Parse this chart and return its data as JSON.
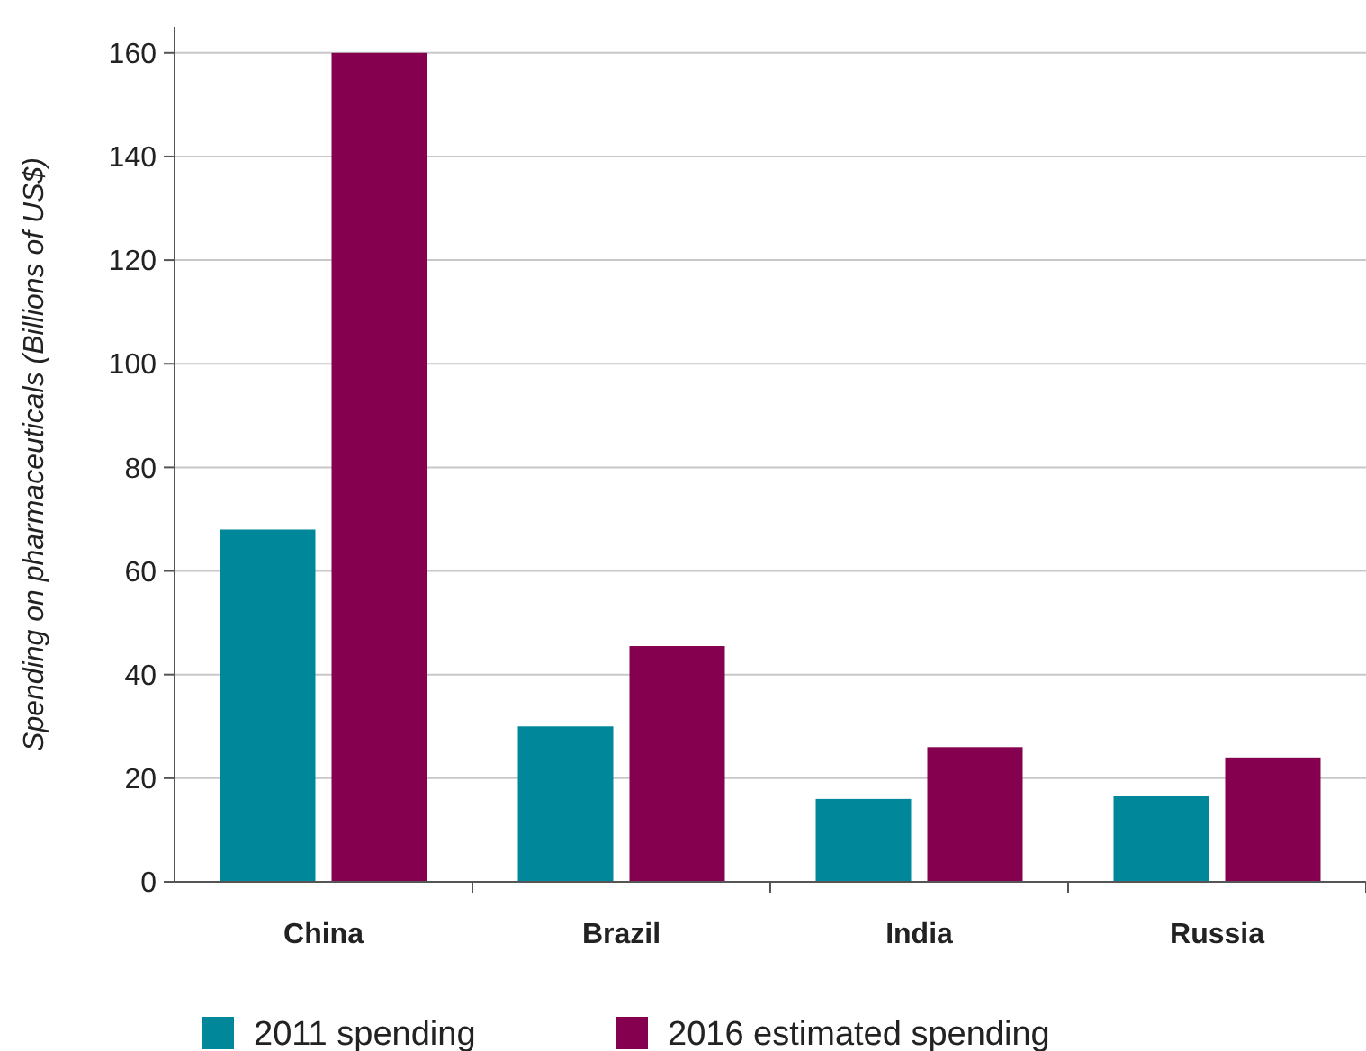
{
  "chart_data": {
    "type": "bar",
    "ylabel": "Spending on pharmaceuticals (Billions of US$)",
    "categories": [
      "China",
      "Brazil",
      "India",
      "Russia"
    ],
    "series": [
      {
        "name": "2011 spending",
        "color": "#00879a",
        "values": [
          68,
          30,
          16,
          16.5
        ]
      },
      {
        "name": "2016 estimated spending",
        "color": "#85004f",
        "values": [
          160,
          45.5,
          26,
          24
        ]
      }
    ],
    "ylim": [
      0,
      165
    ],
    "yticks": [
      0,
      20,
      40,
      60,
      80,
      100,
      120,
      140,
      160
    ],
    "grid": "y",
    "legend": "bottom"
  }
}
